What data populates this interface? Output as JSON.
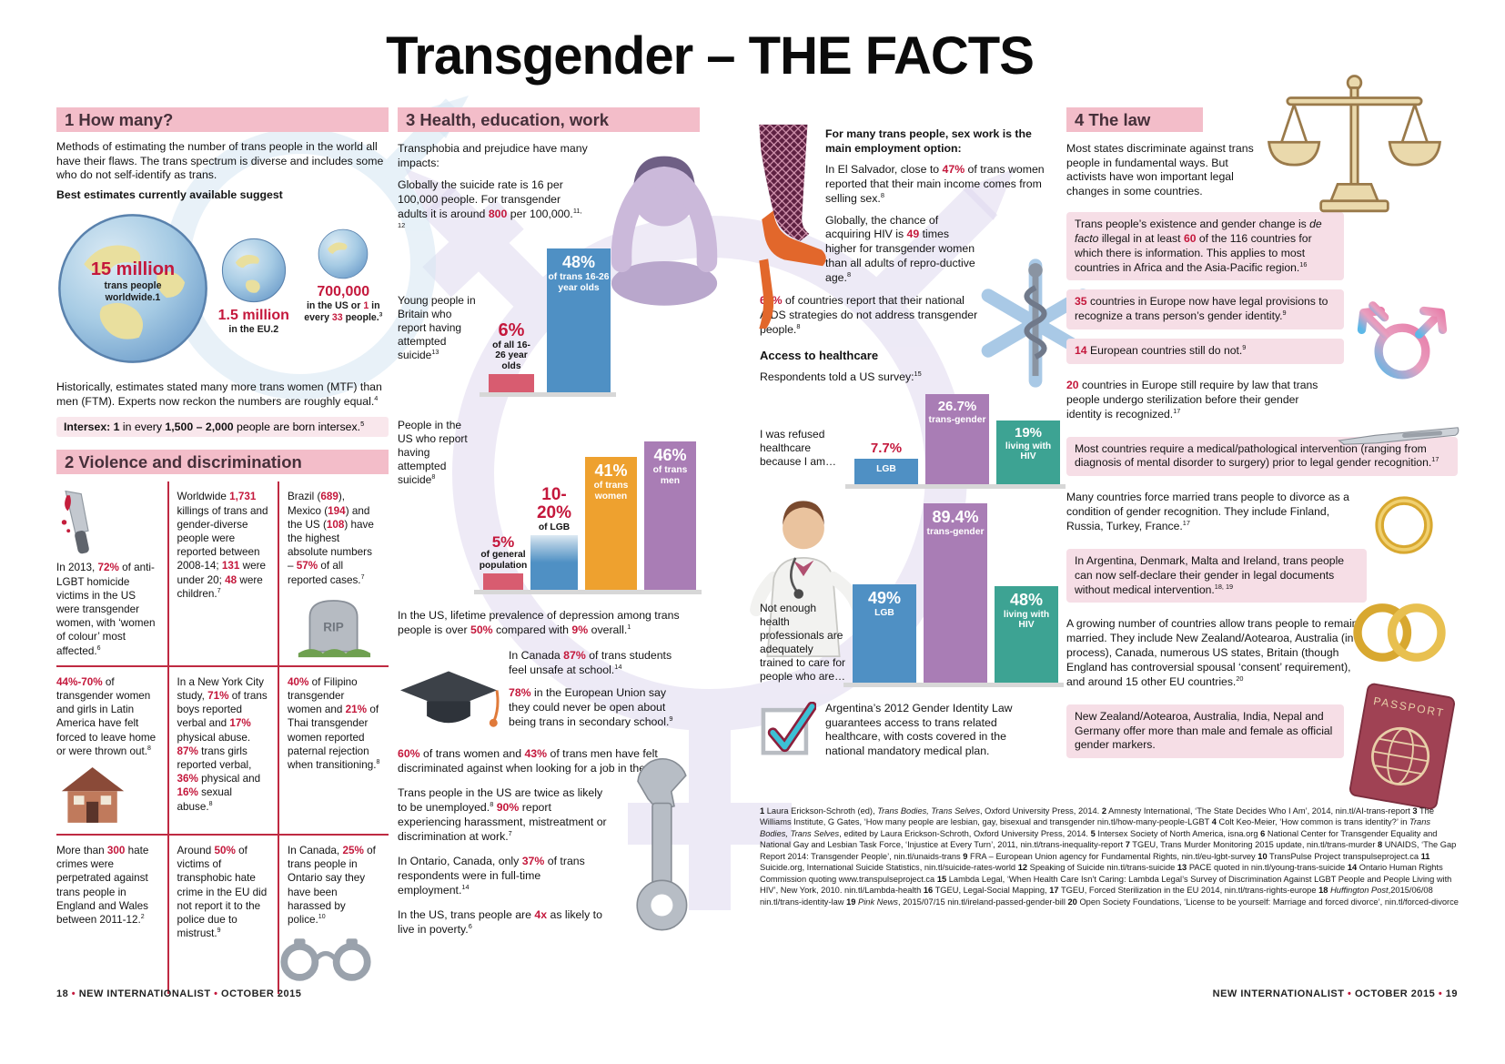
{
  "title": "Transgender – THE FACTS",
  "colors": {
    "accent_red": "#c4183c",
    "header_pink": "#f3bdc9",
    "law_panel_pink": "#f6dee6",
    "bar_red": "#d85c70",
    "bar_blue": "#4f90c4",
    "bar_orange": "#eea12f",
    "bar_purple": "#a97db5",
    "bar_teal": "#3da393"
  },
  "how_many": {
    "header": "1 How many?",
    "intro": "Methods of estimating the number of trans people in the world all have their flaws. The trans spectrum is diverse and includes some who do not self-identify as trans.",
    "best": "Best estimates currently available suggest",
    "globe_world": {
      "value": "15 million",
      "caption": "trans people worldwide.1"
    },
    "globe_eu": {
      "value": "1.5 million",
      "caption": "in the EU.2"
    },
    "globe_us": {
      "value": "700,000",
      "caption_html": "in the US or <b>1</b> in every <b>33</b> people.<sup>3</sup>"
    },
    "history": "Historically, estimates stated many more trans women (MTF) than men (FTM). Experts now reckon the numbers are roughly equal.<sup>4</sup>",
    "intersex": "<strong>Intersex: 1</strong> in every <strong>1,500 – 2,000</strong> people are born intersex.<sup>5</sup>"
  },
  "violence": {
    "header": "2 Violence and discrimination",
    "rip": "RIP",
    "cells": [
      {
        "html": "In 2013, <b>72%</b> of anti-LGBT homicide victims in the US were transgender women, with ‘women of colour’ most affected.<sup>6</sup>"
      },
      {
        "html": "Worldwide <b>1,731</b> killings of trans and gender-diverse people were reported between 2008-14; <b>131</b> were under 20; <b>48</b> were children.<sup>7</sup>"
      },
      {
        "html": "Brazil (<b>689</b>), Mexico (<b>194</b>) and the US (<b>108</b>) have the highest absolute numbers – <b>57%</b> of all reported cases.<sup>7</sup>"
      },
      {
        "html": "<b>44%-70%</b> of transgender women and girls in Latin America have felt forced to leave home or were thrown out.<sup>8</sup>"
      },
      {
        "html": "In a New York City study, <b>71%</b> of trans boys reported verbal and <b>17%</b> physical abuse. <b>87%</b> trans girls reported verbal, <b>36%</b> physical and <b>16%</b> sexual abuse.<sup>8</sup>"
      },
      {
        "html": "<b>40%</b> of Filipino transgender women and <b>21%</b> of Thai transgender women reported paternal rejection when transitioning.<sup>8</sup>"
      },
      {
        "html": "More than <b>300</b> hate crimes were perpetrated against trans people in England and Wales between 2011-12.<sup>2</sup>"
      },
      {
        "html": "Around <b>50%</b> of victims of transphobic hate crime in the EU did not report it to the police due to mistrust.<sup>9</sup>"
      },
      {
        "html": "In Canada, <b>25%</b> of trans people in Ontario say they have been harassed by police.<sup>10</sup>"
      }
    ]
  },
  "health": {
    "header": "3 Health, education, work",
    "intro": "Transphobia and prejudice have many impacts:",
    "suicide_global": "Globally the suicide rate is 16 per 100,000 people. For transgender adults it is around <b>800</b> per 100,000.<sup>11, 12</sup>",
    "chartA": {
      "type": "bar",
      "label": "Young people in Britain who report having attempted suicide<sup>13</sup>",
      "bars": [
        {
          "value": 6,
          "pct": "6%",
          "caption": "of all 16-26 year olds"
        },
        {
          "value": 48,
          "pct": "48%",
          "caption": "of trans 16-26 year olds"
        }
      ]
    },
    "chartB": {
      "type": "bar",
      "label": "People in the US who report having attempted suicide<sup>8</sup>",
      "bars": [
        {
          "value": 5,
          "pct": "5%",
          "caption": "of general population"
        },
        {
          "value": 17,
          "pct": "10-20%",
          "caption": "of LGB"
        },
        {
          "value": 41,
          "pct": "41%",
          "caption": "of trans women"
        },
        {
          "value": 46,
          "pct": "46%",
          "caption": "of trans men"
        }
      ]
    },
    "depression": "In the US, lifetime prevalence of depression among trans people is over <b>50%</b> compared with <b>9%</b> overall.<sup>1</sup>",
    "school_canada": "In Canada <b>87%</b> of trans students feel unsafe at school.<sup>14</sup>",
    "school_eu": "<b>78%</b> in the European Union say they could never be open about being trans in secondary school.<sup>9</sup>",
    "jobs_eu": "<b>60%</b> of trans women and <b>43%</b> of trans men have felt discriminated against when looking for a job in the EU.<sup>9</sup>",
    "unemployment": "Trans people in the US are twice as likely to be unemployed.<sup>8</sup> <b>90%</b> report experiencing harassment, mistreatment or discrimination at work.<sup>7</sup>",
    "ontario_employment": "In Ontario, Canada, only <b>37%</b> of trans respondents were in full-time employment.<sup>14</sup>",
    "poverty": "In the US,  trans people are <b>4x</b> as likely to live in poverty.<sup>6</sup>"
  },
  "sexwork": {
    "intro": "For many trans people, sex work is the main employment option:",
    "el_salvador": "In El Salvador, close to <b>47%</b> of trans women reported that their main income comes from selling sex.<sup>8</sup>",
    "hiv": "Globally, the chance of acquiring HIV is <b>49</b> times higher for transgender women than all adults of repro-ductive age.<sup>8</sup>",
    "aids_strategies": "<b>61%</b> of countries report that their national AIDS strategies do not address transgender people.<sup>8</sup>"
  },
  "healthcare": {
    "access_header": "Access to healthcare",
    "survey_note": "Respondents told a US survey:<sup>15</sup>",
    "chartC": {
      "type": "bar",
      "label": "I was refused healthcare because I am…",
      "bars": [
        {
          "value": 7.7,
          "pct": "7.7%",
          "caption": "LGB"
        },
        {
          "value": 26.7,
          "pct": "26.7%",
          "caption": "trans-gender"
        },
        {
          "value": 19,
          "pct": "19%",
          "caption": "living with HIV"
        }
      ]
    },
    "chartD": {
      "type": "bar",
      "label": "Not enough health professionals are adequately trained to care for people who are…",
      "bars": [
        {
          "value": 49,
          "pct": "49%",
          "caption": "LGB"
        },
        {
          "value": 89.4,
          "pct": "89.4%",
          "caption": "trans-gender"
        },
        {
          "value": 48,
          "pct": "48%",
          "caption": "living with HIV"
        }
      ]
    },
    "argentina": "Argentina’s 2012 Gender Identity Law guarantees access to trans related healthcare, with costs covered in the national mandatory medical plan."
  },
  "law": {
    "header": "4 The law",
    "intro": "Most states discriminate against  trans people in fundamental ways. But activists have won important  legal changes in some countries.",
    "passport_label": "PASSPORT",
    "items": [
      {
        "html": "Trans people’s existence and gender change is <i>de facto</i> illegal in at least <b>60</b> of the 116 countries for which there is information. This applies to most countries in Africa and the Asia-Pacific region.<sup>16</sup>"
      },
      {
        "html": "<b>35</b> countries in Europe now have legal provisions to recognize a trans person’s gender identity.<sup>9</sup>"
      },
      {
        "html": "<b>14</b> European countries still do not.<sup>9</sup>"
      },
      {
        "html": "<b>20</b> countries in Europe still require by law that trans people undergo sterilization before their gender identity is recognized.<sup>17</sup>"
      },
      {
        "html": "Most countries require a medical/pathological intervention (ranging from diagnosis of mental disorder to surgery) prior to legal gender recognition.<sup>17</sup>"
      },
      {
        "html": "Many countries force married trans people to divorce as a condition of gender recognition. They include Finland, Russia, Turkey, France.<sup>17</sup>"
      },
      {
        "html": "In Argentina, Denmark, Malta and Ireland, trans people can now self-declare their gender in legal documents without medical intervention.<sup>18, 19</sup>"
      },
      {
        "html": "A growing number of countries allow trans people to remain married. They include New Zealand/Aotearoa, Australia (in process), Canada, numerous US states, Britain (though England has controversial spousal ‘consent’ requirement), and around 15 other EU countries.<sup>20</sup>"
      },
      {
        "html": "New Zealand/Aotearoa, Australia, India, Nepal and Germany offer more than male and female as official gender markers."
      }
    ]
  },
  "references": {
    "text_html": "<strong>1</strong> Laura Erickson-Schroth (ed), <i>Trans Bodies, Trans Selves</i>, Oxford University Press, 2014.  <strong>2</strong> Amnesty International, ‘The State Decides Who I Am’, 2014, nin.tl/AI-trans-report  <strong>3</strong> The Williams Institute, G Gates, ‘How many people are lesbian, gay, bisexual and transgender nin.tl/how-many-people-LGBT  <strong>4</strong> Colt Keo-Meier, ‘How common is trans identity?’ in <i>Trans Bodies, Trans Selves</i>, edited by Laura Erickson-Schroth, Oxford University Press, 2014.  <strong>5</strong> Intersex Society of North America, isna.org  <strong>6</strong> National Center for Transgender Equality and National Gay and Lesbian Task Force, ‘Injustice at Every Turn’, 2011, nin.tl/trans-inequality-report  <strong>7</strong> TGEU, Trans Murder Monitoring 2015 update, nin.tl/trans-murder  <strong>8</strong> UNAIDS, ‘The Gap Report 2014: Transgender People’, nin.tl/unaids-trans  <strong>9</strong> FRA – European Union agency for Fundamental Rights, nin.tl/eu-lgbt-survey  <strong>10</strong> TransPulse Project transpulseproject.ca  <strong>11</strong> Suicide.org, International Suicide Statistics, nin.tl/suicide-rates-world  <strong>12</strong> Speaking of Suicide nin.tl/trans-suicide  <strong>13</strong> PACE quoted in nin.tl/young-trans-suicide  <strong>14</strong> Ontario Human Rights Commission quoting www.transpulseproject.ca  <strong>15</strong> Lambda Legal, ‘When Health Care Isn’t Caring: Lambda Legal’s Survey of Discrimination Against LGBT People and People Living with HIV’, New York, 2010. nin.tl/Lambda-health  <strong>16</strong> TGEU, Legal-Social Mapping,  <strong>17</strong> TGEU, Forced Sterilization in the EU 2014, nin.tl/trans-rights-europe  <strong>18</strong> <i>Huffington Post</i>,2015/06/08 nin.tl/trans-identity-law  <strong>19</strong> <i>Pink News</i>, 2015/07/15 nin.tl/ireland-passed-gender-bill  <strong>20</strong> Open Society Foundations, ‘License to be yourself: Marriage and forced divorce’, nin.tl/forced-divorce"
  },
  "footer": {
    "left_html": "18 <b>•</b> NEW INTERNATIONALIST <b>•</b> OCTOBER 2015",
    "right_html": "NEW INTERNATIONALIST <b>•</b> OCTOBER 2015 <b>•</b> 19"
  }
}
